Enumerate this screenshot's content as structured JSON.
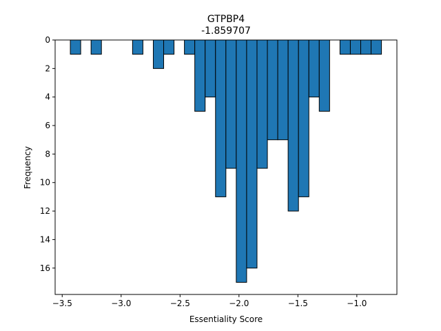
{
  "chart_data": {
    "type": "bar",
    "subtype": "histogram",
    "title": "GTPBP4",
    "subtitle": "-1.859707",
    "xlabel": "Essentiality Score",
    "ylabel": "Frequency",
    "y_inverted": true,
    "bin_width": 0.088,
    "xlim": [
      -3.56,
      -0.66
    ],
    "ylim": [
      0,
      17.85
    ],
    "x_ticks": [
      -3.5,
      -3.0,
      -2.5,
      -2.0,
      -1.5,
      -1.0
    ],
    "x_tick_labels": [
      "−3.5",
      "−3.0",
      "−2.5",
      "−2.0",
      "−1.5",
      "−1.0"
    ],
    "y_ticks": [
      0,
      2,
      4,
      6,
      8,
      10,
      12,
      14,
      16
    ],
    "y_tick_labels": [
      "0",
      "2",
      "4",
      "6",
      "8",
      "10",
      "12",
      "14",
      "16"
    ],
    "bar_color": "#1f77b4",
    "edge_color": "#000000",
    "bins": [
      {
        "x0": -3.431,
        "count": 1
      },
      {
        "x0": -3.255,
        "count": 1
      },
      {
        "x0": -2.903,
        "count": 1
      },
      {
        "x0": -2.727,
        "count": 2
      },
      {
        "x0": -2.639,
        "count": 1
      },
      {
        "x0": -2.463,
        "count": 1
      },
      {
        "x0": -2.375,
        "count": 5
      },
      {
        "x0": -2.287,
        "count": 4
      },
      {
        "x0": -2.199,
        "count": 11
      },
      {
        "x0": -2.111,
        "count": 9
      },
      {
        "x0": -2.023,
        "count": 17
      },
      {
        "x0": -1.935,
        "count": 16
      },
      {
        "x0": -1.847,
        "count": 9
      },
      {
        "x0": -1.759,
        "count": 7
      },
      {
        "x0": -1.671,
        "count": 7
      },
      {
        "x0": -1.583,
        "count": 12
      },
      {
        "x0": -1.495,
        "count": 11
      },
      {
        "x0": -1.407,
        "count": 4
      },
      {
        "x0": -1.319,
        "count": 5
      },
      {
        "x0": -1.143,
        "count": 1
      },
      {
        "x0": -1.055,
        "count": 1
      },
      {
        "x0": -0.967,
        "count": 1
      },
      {
        "x0": -0.879,
        "count": 1
      }
    ]
  }
}
